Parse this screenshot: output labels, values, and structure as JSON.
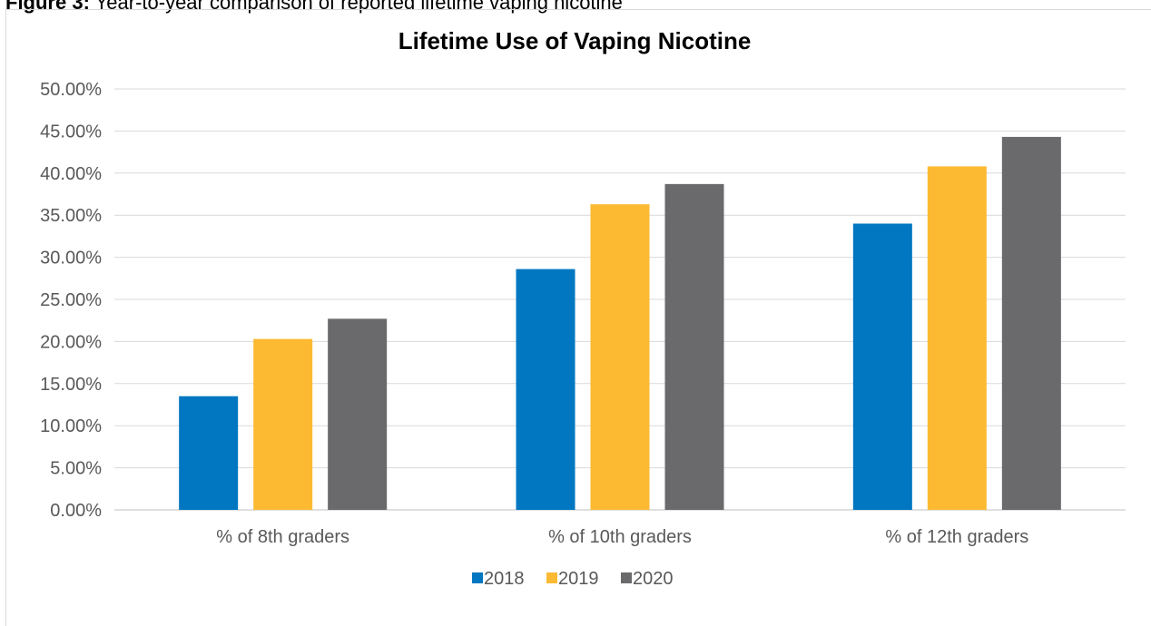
{
  "figure_caption": {
    "lead": "Figure 3:",
    "text": "Year-to-year comparison of reported lifetime vaping nicotine"
  },
  "chart_data": {
    "type": "bar",
    "title": "Lifetime Use of Vaping Nicotine",
    "xlabel": "",
    "ylabel": "",
    "categories": [
      "% of 8th graders",
      "% of 10th graders",
      "% of 12th graders"
    ],
    "series": [
      {
        "name": "2018",
        "color": "#0077c0",
        "values": [
          13.5,
          28.6,
          34.0
        ]
      },
      {
        "name": "2019",
        "color": "#fbba32",
        "values": [
          20.3,
          36.3,
          40.8
        ]
      },
      {
        "name": "2020",
        "color": "#6a6a6d",
        "values": [
          22.7,
          38.7,
          44.3
        ]
      }
    ],
    "ylim": [
      0,
      50
    ],
    "yticks": [
      0,
      5,
      10,
      15,
      20,
      25,
      30,
      35,
      40,
      45,
      50
    ],
    "ytick_format": "percent_2dp",
    "grid": true,
    "legend_position": "bottom"
  }
}
